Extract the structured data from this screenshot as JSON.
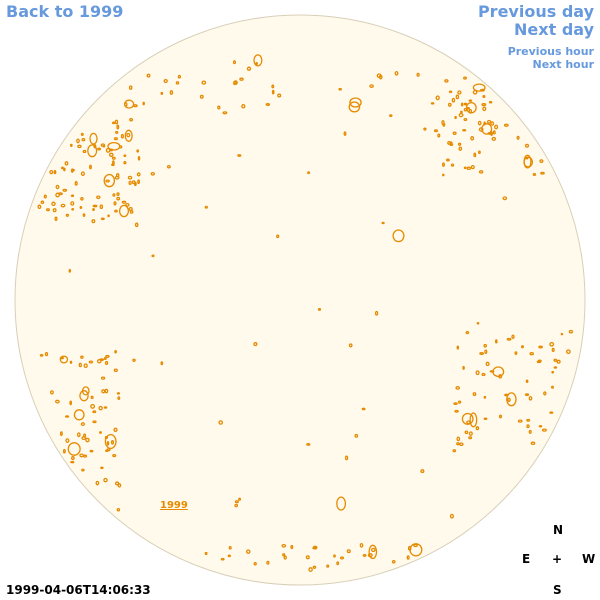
{
  "nav": {
    "back": "Back to 1999",
    "previous_day": "Previous day",
    "next_day": "Next day",
    "previous_hour": "Previous hour",
    "next_hour": "Next hour"
  },
  "disc": {
    "year_marker": "1999",
    "fill_color": "#fffaec",
    "outline_color": "#d8cfb8",
    "feature_color": "#e68a00"
  },
  "compass": {
    "n": "N",
    "e": "E",
    "center": "+",
    "w": "W",
    "s": "S"
  },
  "timestamp": "1999-04-06T14:06:33"
}
